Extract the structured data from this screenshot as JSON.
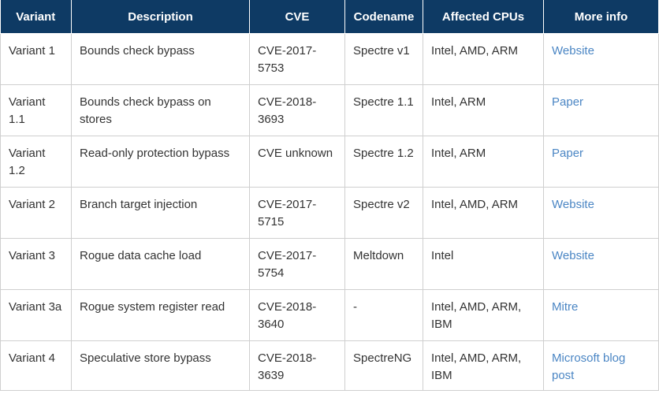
{
  "table": {
    "headers": [
      "Variant",
      "Description",
      "CVE",
      "Codename",
      "Affected CPUs",
      "More info"
    ],
    "rows": [
      {
        "variant": "Variant 1",
        "description": "Bounds check bypass",
        "cve": "CVE-2017-5753",
        "codename": "Spectre v1",
        "cpus": "Intel, AMD, ARM",
        "info": "Website"
      },
      {
        "variant": "Variant 1.1",
        "description": "Bounds check bypass on stores",
        "cve": "CVE-2018-3693",
        "codename": "Spectre 1.1",
        "cpus": "Intel, ARM",
        "info": "Paper"
      },
      {
        "variant": "Variant 1.2",
        "description": "Read-only protection bypass",
        "cve": "CVE unknown",
        "codename": "Spectre 1.2",
        "cpus": "Intel, ARM",
        "info": "Paper"
      },
      {
        "variant": "Variant 2",
        "description": "Branch target injection",
        "cve": "CVE-2017-5715",
        "codename": "Spectre v2",
        "cpus": "Intel, AMD, ARM",
        "info": "Website"
      },
      {
        "variant": "Variant 3",
        "description": "Rogue data cache load",
        "cve": "CVE-2017-5754",
        "codename": "Meltdown",
        "cpus": "Intel",
        "info": "Website"
      },
      {
        "variant": "Variant 3a",
        "description": "Rogue system register read",
        "cve": "CVE-2018-3640",
        "codename": "-",
        "cpus": "Intel, AMD, ARM, IBM",
        "info": "Mitre"
      },
      {
        "variant": "Variant 4",
        "description": "Speculative store bypass",
        "cve": "CVE-2018-3639",
        "codename": "SpectreNG",
        "cpus": "Intel, AMD, ARM, IBM",
        "info": "Microsoft blog post"
      }
    ]
  },
  "colors": {
    "header_bg": "#0e3a64",
    "header_text": "#ffffff",
    "link": "#4b86c4",
    "border": "#cfcfcf"
  }
}
